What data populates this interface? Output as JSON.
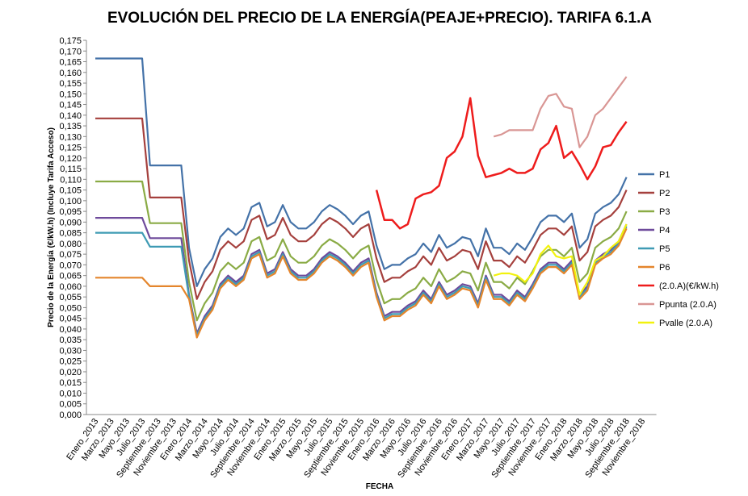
{
  "chart_data": {
    "type": "line",
    "title": "EVOLUCIÓN DEL PRECIO  DE LA ENERGÍA(PEAJE+PRECIO). TARIFA 6.1.A",
    "y_label": "Precio de la Energía  (€/kW.h) (Incluye Tarifa Acceso)",
    "x_label": "FECHA",
    "categories": [
      "Enero_2013",
      null,
      "Marzo_2013",
      null,
      "Mayo_2013",
      null,
      "Julio_2013",
      null,
      "Septiembre_2013",
      null,
      "Noviembre_2013",
      null,
      "Enero_2014",
      null,
      "Marzo_2014",
      null,
      "Mayo_2014",
      null,
      "Julio_2014",
      null,
      "Septiembre_2014",
      null,
      "Noviembre_2014",
      null,
      "Enero_2015",
      null,
      "Marzo_2015",
      null,
      "Mayo_2015",
      null,
      "Julio_2015",
      null,
      "Septiembre_2015",
      null,
      "Noviembre_2015",
      null,
      "Enero_2016",
      null,
      "Marzo_2016",
      null,
      "Mayo_2016",
      null,
      "Julio_2016",
      null,
      "Septiembre_2016",
      null,
      "Noviembre_2016",
      null,
      "Enero_2017",
      null,
      "Marzo_2017",
      null,
      "Mayo_2017",
      null,
      "Julio_2017",
      null,
      "Septiembre_2017",
      null,
      "Noviembre_2017",
      null,
      "Enero_2018",
      null,
      "Marzo_2018",
      null,
      "Mayo_2018",
      null,
      "Julio_2018",
      null,
      "Septiembre_2018",
      null,
      "Noviembre_2018",
      null
    ],
    "ylim": [
      0,
      0.175
    ],
    "yticks": [
      {
        "value": 0,
        "label": "0,000"
      },
      {
        "value": 0.005,
        "label": "0,005"
      },
      {
        "value": 0.01,
        "label": "0,010"
      },
      {
        "value": 0.015,
        "label": "0,015"
      },
      {
        "value": 0.02,
        "label": "0,020"
      },
      {
        "value": 0.025,
        "label": "0,025"
      },
      {
        "value": 0.03,
        "label": "0,030"
      },
      {
        "value": 0.035,
        "label": "0,035"
      },
      {
        "value": 0.04,
        "label": "0,040"
      },
      {
        "value": 0.045,
        "label": "0,045"
      },
      {
        "value": 0.05,
        "label": "0,050"
      },
      {
        "value": 0.055,
        "label": "0,055"
      },
      {
        "value": 0.06,
        "label": "0,060"
      },
      {
        "value": 0.065,
        "label": "0,065"
      },
      {
        "value": 0.07,
        "label": "0,070"
      },
      {
        "value": 0.075,
        "label": "0,075"
      },
      {
        "value": 0.08,
        "label": "0,080"
      },
      {
        "value": 0.085,
        "label": "0,085"
      },
      {
        "value": 0.09,
        "label": "0,090"
      },
      {
        "value": 0.095,
        "label": "0,095"
      },
      {
        "value": 0.1,
        "label": "0,100"
      },
      {
        "value": 0.105,
        "label": "0,105"
      },
      {
        "value": 0.11,
        "label": "0,110"
      },
      {
        "value": 0.115,
        "label": "0,115"
      },
      {
        "value": 0.12,
        "label": "0,120"
      },
      {
        "value": 0.125,
        "label": "0,125"
      },
      {
        "value": 0.13,
        "label": "0,130"
      },
      {
        "value": 0.135,
        "label": "0,135"
      },
      {
        "value": 0.14,
        "label": "0,140"
      },
      {
        "value": 0.145,
        "label": "0,145"
      },
      {
        "value": 0.15,
        "label": "0,150"
      },
      {
        "value": 0.155,
        "label": "0,155"
      },
      {
        "value": 0.16,
        "label": "0,160"
      },
      {
        "value": 0.165,
        "label": "0,165"
      },
      {
        "value": 0.17,
        "label": "0,170"
      },
      {
        "value": 0.175,
        "label": "0,175"
      }
    ],
    "grid": false,
    "legend": "right",
    "series": [
      {
        "name": "P1",
        "color": "#4472a8",
        "values": [
          0.1665,
          0.1665,
          0.1665,
          0.1665,
          0.1665,
          0.1665,
          0.1665,
          0.1165,
          0.1165,
          0.1165,
          0.1165,
          0.1165,
          0.078,
          0.06,
          0.068,
          0.073,
          0.083,
          0.087,
          0.084,
          0.087,
          0.097,
          0.099,
          0.088,
          0.09,
          0.098,
          0.09,
          0.087,
          0.087,
          0.09,
          0.095,
          0.098,
          0.096,
          0.093,
          0.089,
          0.093,
          0.095,
          0.079,
          0.068,
          0.07,
          0.07,
          0.073,
          0.075,
          0.08,
          0.076,
          0.084,
          0.078,
          0.08,
          0.083,
          0.082,
          0.074,
          0.087,
          0.078,
          0.078,
          0.075,
          0.08,
          0.077,
          0.083,
          0.09,
          0.093,
          0.093,
          0.09,
          0.094,
          0.078,
          0.082,
          0.094,
          0.097,
          0.099,
          0.103,
          0.111,
          null,
          null,
          null
        ]
      },
      {
        "name": "P2",
        "color": "#a5403d",
        "values": [
          0.1385,
          0.1385,
          0.1385,
          0.1385,
          0.1385,
          0.1385,
          0.1385,
          0.1015,
          0.1015,
          0.1015,
          0.1015,
          0.1015,
          0.072,
          0.054,
          0.062,
          0.067,
          0.077,
          0.081,
          0.078,
          0.081,
          0.091,
          0.093,
          0.082,
          0.084,
          0.092,
          0.084,
          0.081,
          0.081,
          0.084,
          0.089,
          0.092,
          0.09,
          0.087,
          0.083,
          0.087,
          0.089,
          0.073,
          0.062,
          0.064,
          0.064,
          0.067,
          0.069,
          0.074,
          0.07,
          0.078,
          0.072,
          0.074,
          0.077,
          0.076,
          0.068,
          0.081,
          0.072,
          0.072,
          0.069,
          0.074,
          0.071,
          0.077,
          0.084,
          0.087,
          0.087,
          0.084,
          0.088,
          0.072,
          0.076,
          0.088,
          0.091,
          0.093,
          0.097,
          0.105,
          null,
          null,
          null
        ]
      },
      {
        "name": "P3",
        "color": "#8aab45",
        "values": [
          0.109,
          0.109,
          0.109,
          0.109,
          0.109,
          0.109,
          0.109,
          0.0895,
          0.0895,
          0.0895,
          0.0895,
          0.0895,
          0.062,
          0.044,
          0.052,
          0.057,
          0.067,
          0.071,
          0.068,
          0.071,
          0.081,
          0.083,
          0.072,
          0.074,
          0.082,
          0.074,
          0.071,
          0.071,
          0.074,
          0.079,
          0.082,
          0.08,
          0.077,
          0.073,
          0.077,
          0.079,
          0.063,
          0.052,
          0.054,
          0.054,
          0.057,
          0.059,
          0.064,
          0.06,
          0.068,
          0.062,
          0.064,
          0.067,
          0.066,
          0.058,
          0.071,
          0.062,
          0.062,
          0.059,
          0.064,
          0.061,
          0.067,
          0.074,
          0.077,
          0.077,
          0.074,
          0.078,
          0.062,
          0.066,
          0.078,
          0.081,
          0.083,
          0.087,
          0.095,
          null,
          null,
          null
        ]
      },
      {
        "name": "P4",
        "color": "#6e4a9b",
        "values": [
          0.092,
          0.092,
          0.092,
          0.092,
          0.092,
          0.092,
          0.092,
          0.0825,
          0.0825,
          0.0825,
          0.0825,
          0.0825,
          0.056,
          0.038,
          0.046,
          0.051,
          0.061,
          0.065,
          0.062,
          0.065,
          0.075,
          0.077,
          0.066,
          0.068,
          0.076,
          0.068,
          0.065,
          0.065,
          0.068,
          0.073,
          0.076,
          0.074,
          0.071,
          0.067,
          0.071,
          0.073,
          0.057,
          0.046,
          0.048,
          0.048,
          0.051,
          0.053,
          0.058,
          0.054,
          0.062,
          0.056,
          0.058,
          0.061,
          0.06,
          0.052,
          0.065,
          0.056,
          0.056,
          0.053,
          0.058,
          0.055,
          0.061,
          0.068,
          0.071,
          0.071,
          0.068,
          0.072,
          0.056,
          0.06,
          0.072,
          0.075,
          0.077,
          0.081,
          0.089,
          null,
          null,
          null
        ]
      },
      {
        "name": "P5",
        "color": "#3f9bb4",
        "values": [
          0.085,
          0.085,
          0.085,
          0.085,
          0.085,
          0.085,
          0.085,
          0.0785,
          0.0785,
          0.0785,
          0.0785,
          0.0785,
          0.055,
          0.037,
          0.045,
          0.05,
          0.06,
          0.064,
          0.061,
          0.064,
          0.074,
          0.076,
          0.065,
          0.067,
          0.075,
          0.067,
          0.064,
          0.064,
          0.067,
          0.072,
          0.075,
          0.073,
          0.07,
          0.066,
          0.07,
          0.072,
          0.056,
          0.045,
          0.047,
          0.047,
          0.05,
          0.052,
          0.057,
          0.053,
          0.061,
          0.055,
          0.057,
          0.06,
          0.059,
          0.051,
          0.064,
          0.055,
          0.055,
          0.052,
          0.057,
          0.054,
          0.06,
          0.067,
          0.07,
          0.07,
          0.067,
          0.071,
          0.055,
          0.059,
          0.071,
          0.074,
          0.076,
          0.08,
          0.088,
          null,
          null,
          null
        ]
      },
      {
        "name": "P6",
        "color": "#e4852c",
        "values": [
          0.064,
          0.064,
          0.064,
          0.064,
          0.064,
          0.064,
          0.064,
          0.06,
          0.06,
          0.06,
          0.06,
          0.06,
          0.054,
          0.036,
          0.044,
          0.049,
          0.059,
          0.063,
          0.06,
          0.063,
          0.073,
          0.075,
          0.064,
          0.066,
          0.074,
          0.066,
          0.063,
          0.063,
          0.066,
          0.071,
          0.074,
          0.072,
          0.069,
          0.065,
          0.069,
          0.071,
          0.055,
          0.044,
          0.046,
          0.046,
          0.049,
          0.051,
          0.056,
          0.052,
          0.06,
          0.054,
          0.056,
          0.059,
          0.058,
          0.05,
          0.063,
          0.054,
          0.054,
          0.051,
          0.056,
          0.053,
          0.059,
          0.066,
          0.069,
          0.069,
          0.066,
          0.07,
          0.054,
          0.058,
          0.07,
          0.073,
          0.075,
          0.079,
          0.087,
          null,
          null,
          null
        ]
      },
      {
        "name": "(2.0.A)(€/kW.h)",
        "color": "#ee1c1c",
        "values": [
          null,
          null,
          null,
          null,
          null,
          null,
          null,
          null,
          null,
          null,
          null,
          null,
          null,
          null,
          null,
          null,
          null,
          null,
          null,
          null,
          null,
          null,
          null,
          null,
          null,
          null,
          null,
          null,
          null,
          null,
          null,
          null,
          null,
          null,
          null,
          null,
          0.105,
          0.091,
          0.091,
          0.087,
          0.089,
          0.101,
          0.103,
          0.104,
          0.107,
          0.12,
          0.123,
          0.13,
          0.148,
          0.121,
          0.111,
          0.112,
          0.113,
          0.115,
          0.113,
          0.113,
          0.115,
          0.124,
          0.127,
          0.135,
          0.12,
          0.123,
          0.117,
          0.11,
          0.116,
          0.125,
          0.126,
          0.132,
          0.137,
          null,
          null,
          null
        ]
      },
      {
        "name": "Ppunta (2.0.A)",
        "color": "#d99694",
        "values": [
          null,
          null,
          null,
          null,
          null,
          null,
          null,
          null,
          null,
          null,
          null,
          null,
          null,
          null,
          null,
          null,
          null,
          null,
          null,
          null,
          null,
          null,
          null,
          null,
          null,
          null,
          null,
          null,
          null,
          null,
          null,
          null,
          null,
          null,
          null,
          null,
          null,
          null,
          null,
          null,
          null,
          null,
          null,
          null,
          null,
          null,
          null,
          null,
          null,
          null,
          null,
          0.13,
          0.131,
          0.133,
          0.133,
          0.133,
          0.133,
          0.143,
          0.149,
          0.15,
          0.144,
          0.143,
          0.125,
          0.13,
          0.14,
          0.143,
          0.148,
          0.153,
          0.158,
          null,
          null,
          null
        ]
      },
      {
        "name": "Pvalle (2.0.A)",
        "color": "#f2f20d",
        "values": [
          null,
          null,
          null,
          null,
          null,
          null,
          null,
          null,
          null,
          null,
          null,
          null,
          null,
          null,
          null,
          null,
          null,
          null,
          null,
          null,
          null,
          null,
          null,
          null,
          null,
          null,
          null,
          null,
          null,
          null,
          null,
          null,
          null,
          null,
          null,
          null,
          null,
          null,
          null,
          null,
          null,
          null,
          null,
          null,
          null,
          null,
          null,
          null,
          null,
          null,
          null,
          0.065,
          0.066,
          0.066,
          0.065,
          0.062,
          0.066,
          0.075,
          0.079,
          0.074,
          0.073,
          0.074,
          0.056,
          0.062,
          0.072,
          0.074,
          0.078,
          0.081,
          0.089,
          null,
          null,
          null
        ]
      }
    ]
  }
}
